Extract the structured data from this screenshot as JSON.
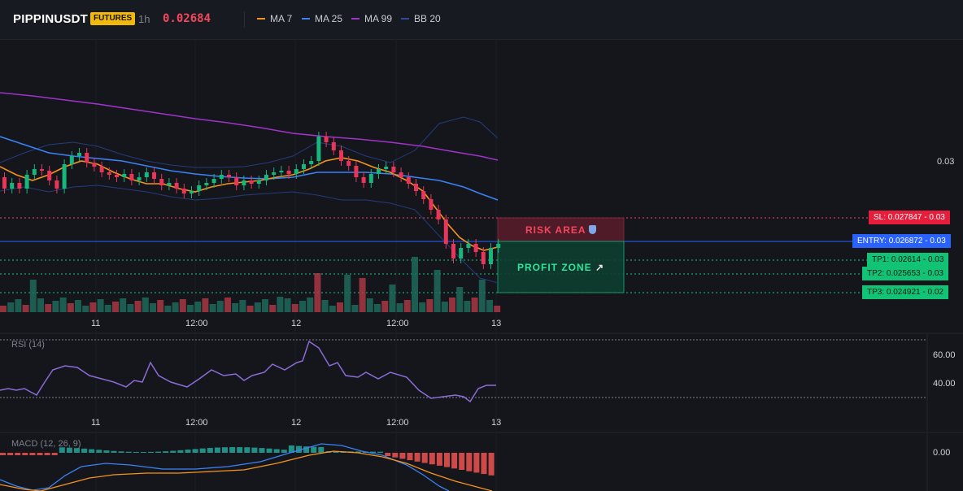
{
  "header": {
    "symbol": "PIPPINUSDT",
    "badge": "FUTURES",
    "timeframe": "1h",
    "price": "0.02684",
    "indicators": [
      {
        "label": "MA 7",
        "color": "#f7931a"
      },
      {
        "label": "MA 25",
        "color": "#3b82f6"
      },
      {
        "label": "MA 99",
        "color": "#a033c8"
      },
      {
        "label": "BB 20",
        "color": "#2d4c9c"
      }
    ]
  },
  "main_chart": {
    "price_label": "0.03",
    "time_labels": [
      "11",
      "12:00",
      "12",
      "12:00",
      "13"
    ],
    "levels": {
      "sl": {
        "label": "SL: 0.027847",
        "axis": "0.03",
        "color": "#f6465d"
      },
      "entry": {
        "label": "ENTRY: 0.026872",
        "axis": "0.03",
        "color": "#2962ff"
      },
      "tp1": {
        "label": "TP1: 0.02614",
        "axis": "0.03",
        "color": "#0ecb81"
      },
      "tp2": {
        "label": "TP2: 0.025653",
        "axis": "0.03",
        "color": "#0ecb81"
      },
      "tp3": {
        "label": "TP3: 0.024921",
        "axis": "0.02",
        "color": "#0ecb81"
      }
    },
    "risk_label": "RISK AREA",
    "profit_label": "PROFIT ZONE",
    "risk_icon": "shield-icon",
    "profit_icon": "rocket-icon"
  },
  "rsi": {
    "name": "RSI (14)",
    "labels": [
      "60.00",
      "40.00"
    ],
    "time_labels": [
      "11",
      "12:00",
      "12",
      "12:00",
      "13"
    ]
  },
  "macd": {
    "name": "MACD (12, 26, 9)",
    "labels": [
      "0.00"
    ]
  }
}
